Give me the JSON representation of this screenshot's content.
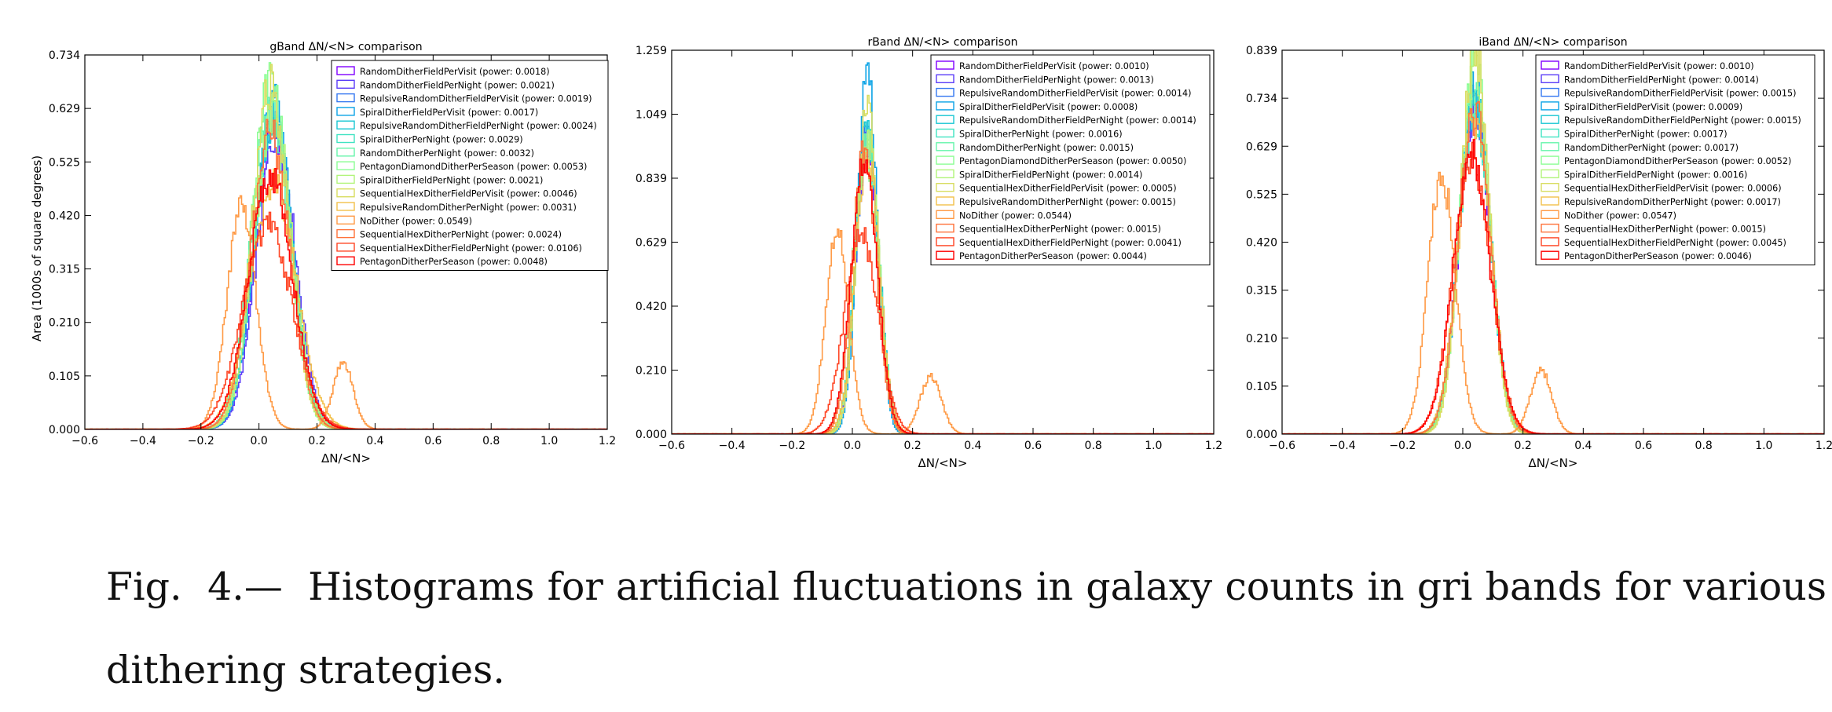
{
  "caption": {
    "label": "Fig.",
    "number": "4.—",
    "text": "Histograms for artificial fluctuations in galaxy counts in gri bands for various dithering strategies."
  },
  "chart_data": [
    {
      "type": "histogram",
      "title": "gBand ΔN/<N> comparison",
      "xlabel": "ΔN/<N>",
      "ylabel": "Area (1000s of square degrees)",
      "xlim": [
        -0.6,
        1.2
      ],
      "ylim": [
        0.0,
        0.734
      ],
      "xticks": [
        "−0.6",
        "−0.4",
        "−0.2",
        "0.0",
        "0.2",
        "0.4",
        "0.6",
        "0.8",
        "1.0",
        "1.2"
      ],
      "yticks": [
        "0.000",
        "0.105",
        "0.210",
        "0.315",
        "0.420",
        "0.525",
        "0.629",
        "0.734"
      ],
      "legend_position": "top-right",
      "series": [
        {
          "name": "RandomDitherFieldPerVisit (power: 0.0018)",
          "color": "#8000ff",
          "peak_x": 0.05,
          "peak_y": 0.6,
          "width": 0.065
        },
        {
          "name": "RandomDitherFieldPerNight (power: 0.0021)",
          "color": "#5a3cf8",
          "peak_x": 0.06,
          "peak_y": 0.58,
          "width": 0.066
        },
        {
          "name": "RepulsiveRandomDitherFieldPerVisit (power: 0.0019)",
          "color": "#3477f1",
          "peak_x": 0.05,
          "peak_y": 0.62,
          "width": 0.064
        },
        {
          "name": "SpiralDitherFieldPerVisit (power: 0.0017)",
          "color": "#0aa3e6",
          "peak_x": 0.05,
          "peak_y": 0.64,
          "width": 0.063
        },
        {
          "name": "RepulsiveRandomDitherFieldPerNight (power: 0.0024)",
          "color": "#1ac7d3",
          "peak_x": 0.05,
          "peak_y": 0.61,
          "width": 0.065
        },
        {
          "name": "SpiralDitherPerNight (power: 0.0029)",
          "color": "#40e3c2",
          "peak_x": 0.05,
          "peak_y": 0.6,
          "width": 0.066
        },
        {
          "name": "RandomDitherPerNight (power: 0.0032)",
          "color": "#66f5ab",
          "peak_x": 0.04,
          "peak_y": 0.63,
          "width": 0.067
        },
        {
          "name": "PentagonDiamondDitherPerSeason (power: 0.0053)",
          "color": "#8cfd94",
          "peak_x": 0.04,
          "peak_y": 0.69,
          "width": 0.062
        },
        {
          "name": "SpiralDitherFieldPerNight (power: 0.0021)",
          "color": "#b2f47b",
          "peak_x": 0.05,
          "peak_y": 0.62,
          "width": 0.065
        },
        {
          "name": "SequentialHexDitherFieldPerVisit (power: 0.0046)",
          "color": "#d8dd60",
          "peak_x": 0.04,
          "peak_y": 0.67,
          "width": 0.063
        },
        {
          "name": "RepulsiveRandomDitherPerNight (power: 0.0031)",
          "color": "#f3c04a",
          "peak_x": 0.05,
          "peak_y": 0.48,
          "width": 0.08
        },
        {
          "name": "NoDither (power: 0.0549)",
          "color": "#ff9a45",
          "peak_x": -0.06,
          "peak_y": 0.43,
          "width": 0.05,
          "secondary_peak_x": 0.29,
          "secondary_peak_y": 0.13
        },
        {
          "name": "SequentialHexDitherPerNight (power: 0.0024)",
          "color": "#ff7239",
          "peak_x": 0.04,
          "peak_y": 0.58,
          "width": 0.067
        },
        {
          "name": "SequentialHexDitherFieldPerNight (power: 0.0106)",
          "color": "#ff4524",
          "peak_x": 0.03,
          "peak_y": 0.4,
          "width": 0.085
        },
        {
          "name": "PentagonDitherPerSeason (power: 0.0048)",
          "color": "#ff0000",
          "peak_x": 0.04,
          "peak_y": 0.5,
          "width": 0.075
        }
      ]
    },
    {
      "type": "histogram",
      "title": "rBand ΔN/<N> comparison",
      "xlabel": "ΔN/<N>",
      "ylabel": "",
      "xlim": [
        -0.6,
        1.2
      ],
      "ylim": [
        0.0,
        1.259
      ],
      "xticks": [
        "−0.6",
        "−0.4",
        "−0.2",
        "0.0",
        "0.2",
        "0.4",
        "0.6",
        "0.8",
        "1.0",
        "1.2"
      ],
      "yticks": [
        "0.000",
        "0.210",
        "0.420",
        "0.629",
        "0.839",
        "1.049",
        "1.259"
      ],
      "legend_position": "top-right",
      "series": [
        {
          "name": "RandomDitherFieldPerVisit (power: 0.0010)",
          "color": "#8000ff",
          "peak_x": 0.05,
          "peak_y": 0.96,
          "width": 0.038
        },
        {
          "name": "RandomDitherFieldPerNight (power: 0.0013)",
          "color": "#5a3cf8",
          "peak_x": 0.05,
          "peak_y": 0.94,
          "width": 0.039
        },
        {
          "name": "RepulsiveRandomDitherFieldPerVisit (power: 0.0014)",
          "color": "#3477f1",
          "peak_x": 0.05,
          "peak_y": 0.98,
          "width": 0.038
        },
        {
          "name": "SpiralDitherFieldPerVisit (power: 0.0008)",
          "color": "#0aa3e6",
          "peak_x": 0.05,
          "peak_y": 1.17,
          "width": 0.033
        },
        {
          "name": "RepulsiveRandomDitherFieldPerNight (power: 0.0014)",
          "color": "#1ac7d3",
          "peak_x": 0.05,
          "peak_y": 1.0,
          "width": 0.038
        },
        {
          "name": "SpiralDitherPerNight (power: 0.0016)",
          "color": "#40e3c2",
          "peak_x": 0.05,
          "peak_y": 0.96,
          "width": 0.039
        },
        {
          "name": "RandomDitherPerNight (power: 0.0015)",
          "color": "#66f5ab",
          "peak_x": 0.05,
          "peak_y": 0.97,
          "width": 0.039
        },
        {
          "name": "PentagonDiamondDitherPerSeason (power: 0.0050)",
          "color": "#8cfd94",
          "peak_x": 0.04,
          "peak_y": 0.9,
          "width": 0.042
        },
        {
          "name": "SpiralDitherFieldPerNight (power: 0.0014)",
          "color": "#b2f47b",
          "peak_x": 0.05,
          "peak_y": 0.98,
          "width": 0.038
        },
        {
          "name": "SequentialHexDitherFieldPerVisit (power: 0.0005)",
          "color": "#d8dd60",
          "peak_x": 0.05,
          "peak_y": 1.08,
          "width": 0.035
        },
        {
          "name": "RepulsiveRandomDitherPerNight (power: 0.0015)",
          "color": "#f3c04a",
          "peak_x": 0.05,
          "peak_y": 0.92,
          "width": 0.04
        },
        {
          "name": "NoDither (power: 0.0544)",
          "color": "#ff9a45",
          "peak_x": -0.05,
          "peak_y": 0.66,
          "width": 0.038,
          "secondary_peak_x": 0.26,
          "secondary_peak_y": 0.19
        },
        {
          "name": "SequentialHexDitherPerNight (power: 0.0015)",
          "color": "#ff7239",
          "peak_x": 0.04,
          "peak_y": 0.93,
          "width": 0.04
        },
        {
          "name": "SequentialHexDitherFieldPerNight (power: 0.0041)",
          "color": "#ff4524",
          "peak_x": 0.03,
          "peak_y": 0.66,
          "width": 0.055
        },
        {
          "name": "PentagonDitherPerSeason (power: 0.0044)",
          "color": "#ff0000",
          "peak_x": 0.04,
          "peak_y": 0.88,
          "width": 0.043
        }
      ]
    },
    {
      "type": "histogram",
      "title": "iBand ΔN/<N> comparison",
      "xlabel": "ΔN/<N>",
      "ylabel": "",
      "xlim": [
        -0.6,
        1.2
      ],
      "ylim": [
        0.0,
        0.839
      ],
      "xticks": [
        "−0.6",
        "−0.4",
        "−0.2",
        "0.0",
        "0.2",
        "0.4",
        "0.6",
        "0.8",
        "1.0",
        "1.2"
      ],
      "yticks": [
        "0.000",
        "0.105",
        "0.210",
        "0.315",
        "0.420",
        "0.525",
        "0.629",
        "0.734",
        "0.839"
      ],
      "legend_position": "top-right",
      "series": [
        {
          "name": "RandomDitherFieldPerVisit (power: 0.0010)",
          "color": "#8000ff",
          "peak_x": 0.04,
          "peak_y": 0.71,
          "width": 0.052
        },
        {
          "name": "RandomDitherFieldPerNight (power: 0.0014)",
          "color": "#5a3cf8",
          "peak_x": 0.04,
          "peak_y": 0.7,
          "width": 0.053
        },
        {
          "name": "RepulsiveRandomDitherFieldPerVisit (power: 0.0015)",
          "color": "#3477f1",
          "peak_x": 0.04,
          "peak_y": 0.72,
          "width": 0.052
        },
        {
          "name": "SpiralDitherFieldPerVisit (power: 0.0009)",
          "color": "#0aa3e6",
          "peak_x": 0.04,
          "peak_y": 0.75,
          "width": 0.05
        },
        {
          "name": "RepulsiveRandomDitherFieldPerNight (power: 0.0015)",
          "color": "#1ac7d3",
          "peak_x": 0.04,
          "peak_y": 0.73,
          "width": 0.052
        },
        {
          "name": "SpiralDitherPerNight (power: 0.0017)",
          "color": "#40e3c2",
          "peak_x": 0.04,
          "peak_y": 0.71,
          "width": 0.053
        },
        {
          "name": "RandomDitherPerNight (power: 0.0017)",
          "color": "#66f5ab",
          "peak_x": 0.04,
          "peak_y": 0.74,
          "width": 0.052
        },
        {
          "name": "PentagonDiamondDitherPerSeason (power: 0.0052)",
          "color": "#8cfd94",
          "peak_x": 0.04,
          "peak_y": 0.82,
          "width": 0.048
        },
        {
          "name": "SpiralDitherFieldPerNight (power: 0.0016)",
          "color": "#b2f47b",
          "peak_x": 0.04,
          "peak_y": 0.79,
          "width": 0.049
        },
        {
          "name": "SequentialHexDitherFieldPerVisit (power: 0.0006)",
          "color": "#d8dd60",
          "peak_x": 0.04,
          "peak_y": 0.84,
          "width": 0.047
        },
        {
          "name": "RepulsiveRandomDitherPerNight (power: 0.0017)",
          "color": "#f3c04a",
          "peak_x": 0.04,
          "peak_y": 0.69,
          "width": 0.054
        },
        {
          "name": "NoDither (power: 0.0547)",
          "color": "#ff9a45",
          "peak_x": -0.07,
          "peak_y": 0.57,
          "width": 0.045,
          "secondary_peak_x": 0.26,
          "secondary_peak_y": 0.14
        },
        {
          "name": "SequentialHexDitherPerNight (power: 0.0015)",
          "color": "#ff7239",
          "peak_x": 0.04,
          "peak_y": 0.7,
          "width": 0.053
        },
        {
          "name": "SequentialHexDitherFieldPerNight (power: 0.0045)",
          "color": "#ff4524",
          "peak_x": 0.03,
          "peak_y": 0.6,
          "width": 0.062
        },
        {
          "name": "PentagonDitherPerSeason (power: 0.0046)",
          "color": "#ff0000",
          "peak_x": 0.03,
          "peak_y": 0.61,
          "width": 0.061
        }
      ]
    }
  ]
}
